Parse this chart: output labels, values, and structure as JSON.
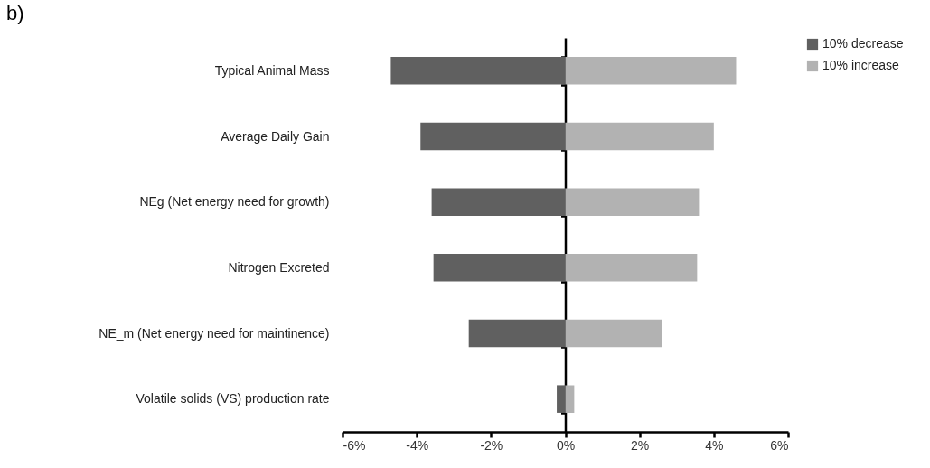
{
  "chart_data": {
    "type": "bar",
    "orientation": "horizontal",
    "title": "b)",
    "categories": [
      "Typical Animal Mass",
      "Average Daily Gain",
      "NEg (Net energy need for growth)",
      "Nitrogen Excreted",
      "NE_m (Net energy need for maintinence)",
      "Volatile solids (VS) production rate"
    ],
    "series": [
      {
        "name": "10% decrease",
        "color": "#606060",
        "values": [
          -4.7,
          -3.9,
          -3.6,
          -3.55,
          -2.6,
          -0.23
        ]
      },
      {
        "name": "10% increase",
        "color": "#b2b2b2",
        "values": [
          4.6,
          4.0,
          3.6,
          3.55,
          2.6,
          0.24
        ]
      }
    ],
    "xlim": [
      -6,
      6
    ],
    "xticks": [
      {
        "value": -6,
        "label": "-6%"
      },
      {
        "value": -4,
        "label": "-4%"
      },
      {
        "value": -2,
        "label": "-2%"
      },
      {
        "value": 0,
        "label": "0%"
      },
      {
        "value": 2,
        "label": "2%"
      },
      {
        "value": 4,
        "label": "4%"
      },
      {
        "value": 6,
        "label": "6%"
      }
    ],
    "legend": "right",
    "stacked": true
  }
}
